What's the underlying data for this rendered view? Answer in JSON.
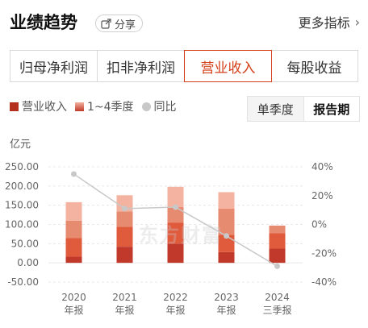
{
  "header": {
    "title": "业绩趋势",
    "share_label": "分享",
    "more_label": "更多指标"
  },
  "tabs": [
    {
      "label": "归母净利润",
      "active": false
    },
    {
      "label": "扣非净利润",
      "active": false
    },
    {
      "label": "营业收入",
      "active": true
    },
    {
      "label": "每股收益",
      "active": false
    }
  ],
  "legend": [
    {
      "label": "营业收入",
      "kind": "square",
      "color": "#b5301c"
    },
    {
      "label": "1~4季度",
      "kind": "gradient",
      "color": "#e07a5a"
    },
    {
      "label": "同比",
      "kind": "dot",
      "color": "#c8c8c8"
    }
  ],
  "periods": [
    {
      "label": "单季度",
      "active": false
    },
    {
      "label": "报告期",
      "active": true
    }
  ],
  "watermark": "东方财富",
  "chart_data": {
    "type": "bar",
    "unit_label": "亿元",
    "categories": [
      {
        "year": "2020",
        "period": "年报"
      },
      {
        "year": "2021",
        "period": "年报"
      },
      {
        "year": "2022",
        "period": "年报"
      },
      {
        "year": "2023",
        "period": "年报"
      },
      {
        "year": "2024",
        "period": "三季报"
      }
    ],
    "stacked_series": [
      {
        "name": "Q1",
        "color": "#c0392b",
        "values": [
          16,
          42,
          50,
          28,
          37
        ]
      },
      {
        "name": "Q2",
        "color": "#e05a3c",
        "values": [
          49,
          52,
          55,
          45,
          40
        ]
      },
      {
        "name": "Q3",
        "color": "#e68a70",
        "values": [
          45,
          40,
          40,
          68,
          20
        ]
      },
      {
        "name": "Q4",
        "color": "#f3b3a0",
        "values": [
          48,
          42,
          53,
          43,
          0
        ]
      }
    ],
    "yoy": {
      "name": "同比",
      "color": "#c8c8c8",
      "values": [
        35,
        11,
        12,
        -8,
        -29
      ]
    },
    "y_left": {
      "min": -50,
      "max": 250,
      "ticks": [
        250,
        200,
        150,
        100,
        50,
        0,
        -50
      ],
      "tick_labels": [
        "250.00",
        "200.00",
        "150.00",
        "100.00",
        "50.00",
        "0.00",
        "-50.00"
      ]
    },
    "y_right": {
      "min": -40,
      "max": 40,
      "ticks": [
        40,
        20,
        0,
        -20,
        -40
      ],
      "tick_labels": [
        "40%",
        "20%",
        "0%",
        "-20%",
        "-40%"
      ]
    },
    "grid": true
  }
}
